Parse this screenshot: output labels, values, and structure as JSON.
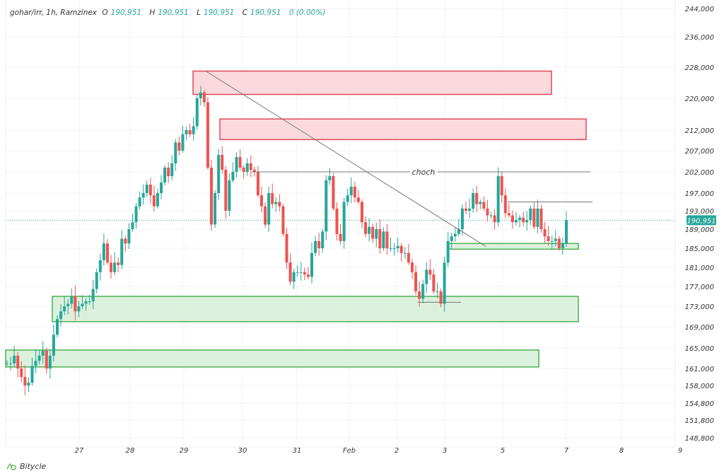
{
  "header": {
    "symbol": "gohar/irr, 1h, Ramzinex",
    "o_label": "O",
    "o": "190,951",
    "h_label": "H",
    "h": "190,951",
    "l_label": "L",
    "l": "190,951",
    "c_label": "C",
    "c": "190,951",
    "change": "0 (0.00%)"
  },
  "brand": {
    "name": "Bitycle",
    "icon": "bitycle-logo-icon"
  },
  "colors": {
    "up": "#26a69a",
    "down": "#ef5350",
    "supply_fill": "#fbd5d9",
    "supply_border": "#e0485a",
    "demand_fill": "#d8efd9",
    "demand_border": "#4caf50",
    "last_price": "#26a69a"
  },
  "chart_data": {
    "type": "candlestick",
    "title": "",
    "y_scale": "log",
    "grid": true,
    "y_ticks": [
      244000,
      236000,
      228000,
      220000,
      212000,
      207000,
      202000,
      197000,
      193000,
      189000,
      185000,
      181000,
      177000,
      173000,
      169000,
      165000,
      161000,
      158000,
      154800,
      151800,
      148800
    ],
    "y_tick_labels": [
      "244,000",
      "236,000",
      "228,000",
      "220,000",
      "212,000",
      "207,000",
      "202,000",
      "197,000",
      "193,000",
      "189,000",
      "185,000",
      "181,000",
      "177,000",
      "173,000",
      "169,000",
      "165,000",
      "161,000",
      "158,000",
      "154,800",
      "151,800",
      "148,800"
    ],
    "x_tick_labels": [
      "27",
      "28",
      "29",
      "30",
      "31",
      "Feb",
      "2",
      "3",
      "5",
      "7",
      "8",
      "9"
    ],
    "last_price": 190951,
    "last_price_label": "190,951",
    "closes": [
      162000,
      162000,
      163500,
      161000,
      159500,
      158000,
      158500,
      161500,
      162500,
      163500,
      164500,
      161000,
      163500,
      167500,
      170500,
      172000,
      173000,
      173500,
      175000,
      172000,
      173000,
      173500,
      174000,
      174000,
      176500,
      180000,
      182500,
      186000,
      182000,
      180000,
      182000,
      181500,
      187000,
      186000,
      189000,
      190500,
      194000,
      196000,
      197000,
      199000,
      196500,
      194000,
      197000,
      199500,
      203000,
      201000,
      204000,
      209000,
      207000,
      211000,
      212000,
      211000,
      213000,
      220000,
      221500,
      219000,
      203000,
      190000,
      197000,
      206000,
      202500,
      193000,
      200000,
      202000,
      205500,
      203000,
      202000,
      204000,
      202500,
      202000,
      196500,
      194000,
      190000,
      197000,
      194500,
      195000,
      194000,
      188000,
      182000,
      178000,
      180000,
      180000,
      180000,
      179500,
      179000,
      184000,
      186500,
      185000,
      188500,
      200000,
      201000,
      193500,
      188000,
      186500,
      195000,
      196500,
      198500,
      196000,
      195000,
      190500,
      188000,
      189500,
      187000,
      189000,
      185000,
      188500,
      185000,
      185000,
      185000,
      185500,
      184000,
      184000,
      182000,
      180000,
      176000,
      174500,
      177500,
      180500,
      179500,
      176000,
      176000,
      173500,
      182000,
      186500,
      187500,
      188000,
      189000,
      193500,
      193000,
      193500,
      197000,
      194500,
      195000,
      193500,
      192000,
      192000,
      190500,
      201000,
      196500,
      192500,
      192000,
      190500,
      191000,
      191500,
      190500,
      191000,
      193500,
      189500,
      193500,
      189000,
      187500,
      186500,
      186500,
      187000,
      185000,
      186000,
      190951
    ],
    "zones": [
      {
        "kind": "supply",
        "top": 227000,
        "bottom": 221000
      },
      {
        "kind": "supply",
        "top": 214800,
        "bottom": 209700
      },
      {
        "kind": "demand",
        "top": 175000,
        "bottom": 170000
      },
      {
        "kind": "demand",
        "top": 164600,
        "bottom": 161300
      },
      {
        "kind": "demand",
        "top": 186000,
        "bottom": 184800
      }
    ],
    "trendline": {
      "from_price": 227000,
      "to_price": 185400
    },
    "levels": [
      {
        "label": "choch",
        "price": 202000
      },
      {
        "label": "",
        "price": 195000
      },
      {
        "label": "",
        "price": 173800
      }
    ]
  }
}
